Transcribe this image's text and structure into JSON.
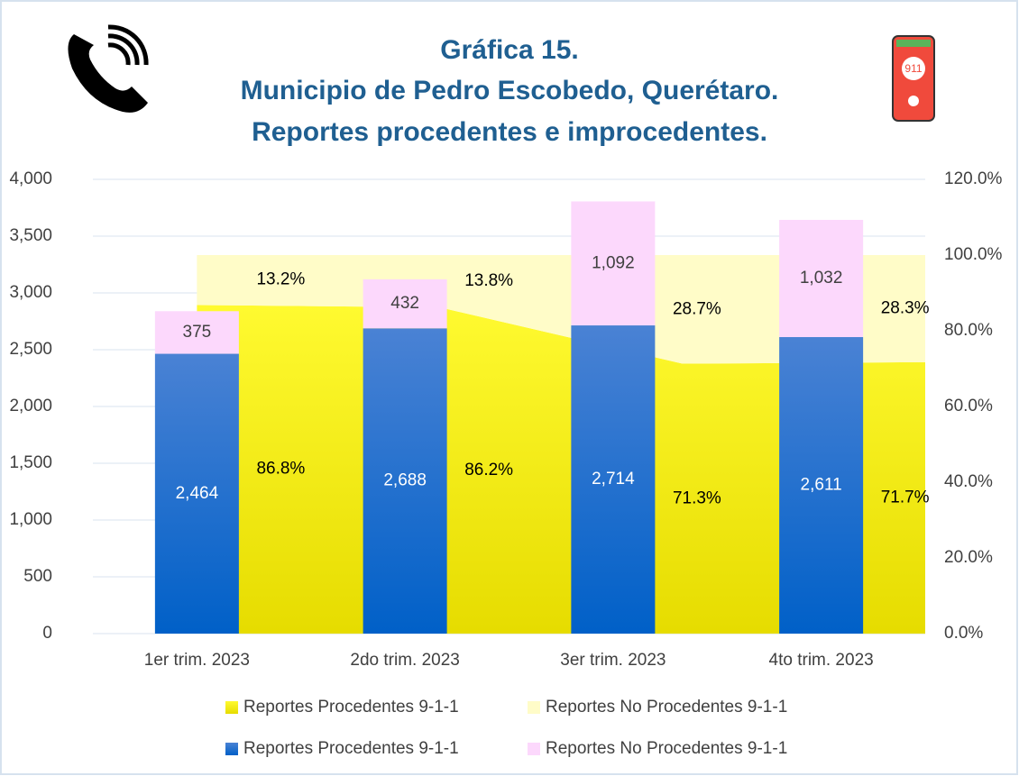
{
  "chart_data": {
    "type": "bar",
    "title_lines": [
      "Gráfica 15.",
      "Municipio de Pedro Escobedo, Querétaro.",
      "Reportes procedentes e improcedentes."
    ],
    "badge": "911",
    "categories": [
      "1er trim. 2023",
      "2do trim. 2023",
      "3er trim. 2023",
      "4to trim. 2023"
    ],
    "series": [
      {
        "name": "Reportes Procedentes 9-1-1",
        "type": "area",
        "axis": "y2",
        "color": "#f4f000",
        "values": [
          86.8,
          86.2,
          71.3,
          71.7
        ],
        "value_labels": [
          "86.8%",
          "86.2%",
          "71.3%",
          "71.7%"
        ]
      },
      {
        "name": "Reportes No Procedentes 9-1-1",
        "type": "area",
        "axis": "y2",
        "color": "#fffcc8",
        "values": [
          13.2,
          13.8,
          28.7,
          28.3
        ],
        "value_labels": [
          "13.2%",
          "13.8%",
          "28.7%",
          "28.3%"
        ]
      },
      {
        "name": "Reportes Procedentes 9-1-1",
        "type": "bar",
        "color": "#1f6fd0",
        "values": [
          2464,
          2688,
          2714,
          2611
        ],
        "value_labels": [
          "2,464",
          "2,688",
          "2,714",
          "2,611"
        ]
      },
      {
        "name": "Reportes No Procedentes 9-1-1",
        "type": "bar",
        "color": "#fcd8fc",
        "values": [
          375,
          432,
          1092,
          1032
        ],
        "value_labels": [
          "375",
          "432",
          "1,092",
          "1,032"
        ]
      }
    ],
    "ylim": [
      0,
      4000
    ],
    "yticks": [
      0,
      500,
      {
        "value": 1000,
        "label": "1,000"
      },
      {
        "value": 1500,
        "label": "1,500"
      },
      {
        "value": 2000,
        "label": "2,000"
      },
      {
        "value": 2500,
        "label": "2,500"
      },
      {
        "value": 3000,
        "label": "3,000"
      },
      {
        "value": 3500,
        "label": "3,500"
      },
      {
        "value": 4000,
        "label": "4,000"
      }
    ],
    "y2lim": [
      0,
      120
    ],
    "y2ticks": [
      {
        "value": 0,
        "label": "0.0%"
      },
      {
        "value": 20,
        "label": "20.0%"
      },
      {
        "value": 40,
        "label": "40.0%"
      },
      {
        "value": 60,
        "label": "60.0%"
      },
      {
        "value": 80,
        "label": "80.0%"
      },
      {
        "value": 100,
        "label": "100.0%"
      },
      {
        "value": 120,
        "label": "120.0%"
      }
    ],
    "grid": true
  }
}
